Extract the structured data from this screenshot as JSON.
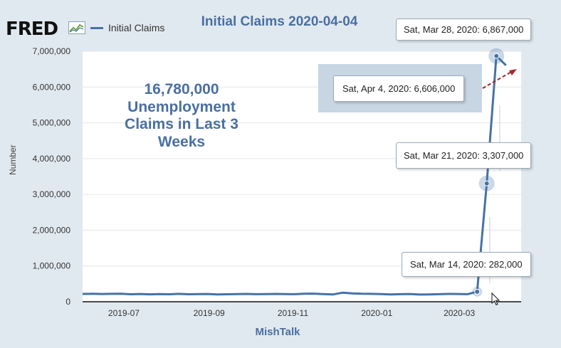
{
  "header": {
    "logo_text": "FRED",
    "title": "Initial Claims 2020-04-04"
  },
  "annotation": {
    "lines": [
      "16,780,000",
      "Unemployment",
      "Claims in Last 3",
      "Weeks"
    ]
  },
  "tooltips": [
    {
      "date_label": "Sat, Mar 28, 2020:",
      "value_label": "6,867,000"
    },
    {
      "date_label": "Sat, Apr 4, 2020:",
      "value_label": "6,606,000"
    },
    {
      "date_label": "Sat, Mar 21, 2020:",
      "value_label": "3,307,000"
    },
    {
      "date_label": "Sat, Mar 14, 2020:",
      "value_label": "282,000"
    }
  ],
  "colors": {
    "series": "#4572a7",
    "title": "#4a6fa1",
    "arrow": "#a52a2a",
    "background": "#e1e9f0",
    "plot_background": "#ffffff"
  },
  "chart_data": {
    "type": "line",
    "title": "Initial Claims 2020-04-04",
    "xlabel": "MishTalk",
    "ylabel": "Number",
    "ylim": [
      0,
      7000000
    ],
    "xlim": [
      "2019-06-01",
      "2020-04-15"
    ],
    "grid": true,
    "legend_position": "top-left",
    "y_ticks": [
      0,
      1000000,
      2000000,
      3000000,
      4000000,
      5000000,
      6000000,
      7000000
    ],
    "y_tick_labels": [
      "0",
      "1,000,000",
      "2,000,000",
      "3,000,000",
      "4,000,000",
      "5,000,000",
      "6,000,000",
      "7,000,000"
    ],
    "x_ticks": [
      "2019-07-01",
      "2019-09-01",
      "2019-11-01",
      "2020-01-01",
      "2020-03-01"
    ],
    "x_tick_labels": [
      "2019-07",
      "2019-09",
      "2019-11",
      "2020-01",
      "2020-03"
    ],
    "series": [
      {
        "name": "Initial Claims",
        "x": [
          "2019-06-01",
          "2019-06-08",
          "2019-06-15",
          "2019-06-22",
          "2019-06-29",
          "2019-07-06",
          "2019-07-13",
          "2019-07-20",
          "2019-07-27",
          "2019-08-03",
          "2019-08-10",
          "2019-08-17",
          "2019-08-24",
          "2019-08-31",
          "2019-09-07",
          "2019-09-14",
          "2019-09-21",
          "2019-09-28",
          "2019-10-05",
          "2019-10-12",
          "2019-10-19",
          "2019-10-26",
          "2019-11-02",
          "2019-11-09",
          "2019-11-16",
          "2019-11-23",
          "2019-11-30",
          "2019-12-07",
          "2019-12-14",
          "2019-12-21",
          "2019-12-28",
          "2020-01-04",
          "2020-01-11",
          "2020-01-18",
          "2020-01-25",
          "2020-02-01",
          "2020-02-08",
          "2020-02-15",
          "2020-02-22",
          "2020-02-29",
          "2020-03-07",
          "2020-03-14",
          "2020-03-21",
          "2020-03-28",
          "2020-04-04"
        ],
        "y": [
          218000,
          222000,
          216000,
          221000,
          225000,
          209000,
          216000,
          206000,
          215000,
          209000,
          220000,
          209000,
          215000,
          217000,
          204000,
          208000,
          213000,
          219000,
          210000,
          214000,
          218000,
          215000,
          211000,
          225000,
          227000,
          213000,
          203000,
          252000,
          234000,
          222000,
          220000,
          214000,
          204000,
          211000,
          216000,
          201000,
          205000,
          210000,
          219000,
          216000,
          211000,
          282000,
          3307000,
          6867000,
          6606000
        ]
      }
    ],
    "highlighted_points": [
      {
        "x": "2020-03-14",
        "y": 282000
      },
      {
        "x": "2020-03-21",
        "y": 3307000
      },
      {
        "x": "2020-03-28",
        "y": 6867000
      }
    ]
  }
}
